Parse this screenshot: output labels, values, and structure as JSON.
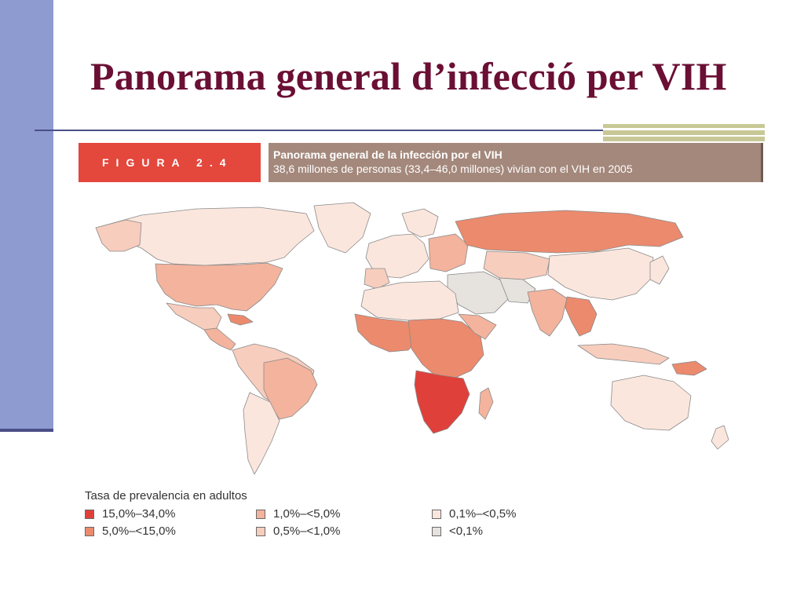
{
  "slide": {
    "title": "Panorama general d’infecció per VIH"
  },
  "figure": {
    "label": "FIGURA 2.4",
    "caption_title": "Panorama general de la infección por el VIH",
    "caption_subtitle": "38,6 millones de personas (33,4–46,0 millones) vivían con el VIH en 2005"
  },
  "legend": {
    "title": "Tasa de prevalencia en adultos",
    "items": [
      {
        "label": "15,0%–34,0%",
        "color": "#e0403a"
      },
      {
        "label": "5,0%–<15,0%",
        "color": "#ec8a6d"
      },
      {
        "label": "1,0%–<5,0%",
        "color": "#f3b39d"
      },
      {
        "label": "0,5%–<1,0%",
        "color": "#f7cdbd"
      },
      {
        "label": "0,1%–<0,5%",
        "color": "#fbe6dd"
      },
      {
        "label": "<0,1%",
        "color": "#e6e2de"
      }
    ]
  },
  "colors": {
    "title": "#6b0f34",
    "side_bar": "#8e9bd0",
    "rule": "#4a4f88",
    "accent_olive": "#c8c896",
    "figure_label_bg": "#e4473c",
    "figure_caption_bg": "#a4887c",
    "border": "#7a6a64"
  }
}
